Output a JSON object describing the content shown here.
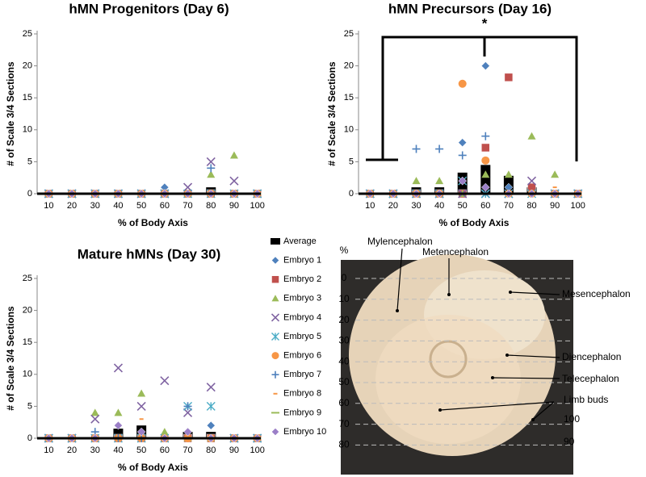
{
  "chart_data": [
    {
      "type": "scatter",
      "title": "hMN Progenitors (Day 6)",
      "y_label": "# of Scale 3/4 Sections",
      "x_label": "% of Body Axis",
      "categories": [
        "10",
        "20",
        "30",
        "40",
        "50",
        "60",
        "70",
        "80",
        "90",
        "100"
      ],
      "ylim": [
        0,
        25
      ],
      "yticks": [
        0,
        5,
        10,
        15,
        20,
        25
      ],
      "series": [
        {
          "name": "Average",
          "marker": "bar",
          "color": "#000000",
          "values": [
            0,
            0,
            0,
            0,
            0,
            0,
            0,
            1,
            0,
            0
          ]
        },
        {
          "name": "Embryo 1",
          "marker": "diamond",
          "color": "#4f81bd",
          "values": [
            0,
            0,
            0,
            0,
            0,
            1,
            0,
            0,
            0,
            0
          ]
        },
        {
          "name": "Embryo 2",
          "marker": "square",
          "color": "#c0504d",
          "values": [
            0,
            0,
            0,
            0,
            0,
            0,
            0,
            0,
            0,
            0
          ]
        },
        {
          "name": "Embryo 3",
          "marker": "triangle",
          "color": "#9bbb59",
          "values": [
            0,
            0,
            0,
            0,
            0,
            0,
            0,
            3,
            6,
            0
          ]
        },
        {
          "name": "Embryo 4",
          "marker": "x",
          "color": "#8064a2",
          "values": [
            0,
            0,
            0,
            0,
            0,
            0,
            1,
            5,
            2,
            0
          ]
        },
        {
          "name": "Embryo 5",
          "marker": "star",
          "color": "#4bacc6",
          "values": [
            0,
            0,
            0,
            0,
            0,
            0,
            0,
            0,
            0,
            0
          ]
        },
        {
          "name": "Embryo 6",
          "marker": "circle",
          "color": "#f79646",
          "values": [
            0,
            0,
            0,
            0,
            0,
            0,
            0,
            0,
            0,
            0
          ]
        },
        {
          "name": "Embryo 7",
          "marker": "plus",
          "color": "#4f81bd",
          "values": [
            0,
            0,
            0,
            0,
            0,
            0,
            0,
            4,
            0,
            0
          ]
        },
        {
          "name": "Embryo 8",
          "marker": "dot",
          "color": "#f79646",
          "values": [
            0,
            0,
            0,
            0,
            0,
            0,
            0,
            0,
            0,
            0
          ]
        },
        {
          "name": "Embryo 9",
          "marker": "dash",
          "color": "#9bbb59",
          "values": [
            0,
            0,
            0,
            0,
            0,
            0,
            0,
            0,
            0,
            0
          ]
        },
        {
          "name": "Embryo 10",
          "marker": "diamond",
          "color": "#9b7fc7",
          "values": [
            0,
            0,
            0,
            0,
            0,
            0,
            0,
            0,
            0,
            0
          ]
        }
      ]
    },
    {
      "type": "scatter",
      "title": "hMN Precursors (Day 16)",
      "y_label": "# of Scale 3/4 Sections",
      "x_label": "%  of Body Axis",
      "annotation": "*",
      "categories": [
        "10",
        "20",
        "30",
        "40",
        "50",
        "60",
        "70",
        "80",
        "90",
        "100"
      ],
      "ylim": [
        0,
        25
      ],
      "yticks": [
        0,
        5,
        10,
        15,
        20,
        25
      ],
      "series": [
        {
          "name": "Average",
          "marker": "bar",
          "color": "#000000",
          "values": [
            0,
            0,
            1,
            1,
            3.3,
            4.5,
            2.8,
            1,
            0,
            0
          ]
        },
        {
          "name": "Embryo 1",
          "marker": "diamond",
          "color": "#4f81bd",
          "values": [
            0,
            0,
            0,
            0,
            8,
            20,
            1,
            0,
            0,
            0
          ]
        },
        {
          "name": "Embryo 2",
          "marker": "square",
          "color": "#c0504d",
          "values": [
            0,
            0,
            0,
            0,
            0,
            7.2,
            18.2,
            1,
            0,
            0
          ]
        },
        {
          "name": "Embryo 3",
          "marker": "triangle",
          "color": "#9bbb59",
          "values": [
            0,
            0,
            2,
            2,
            0,
            3,
            3,
            9,
            3,
            0
          ]
        },
        {
          "name": "Embryo 4",
          "marker": "x",
          "color": "#8064a2",
          "values": [
            0,
            0,
            0,
            0,
            0,
            0,
            0,
            2,
            0,
            0
          ]
        },
        {
          "name": "Embryo 5",
          "marker": "star",
          "color": "#4bacc6",
          "values": [
            0,
            0,
            0,
            0,
            2,
            0,
            0,
            0,
            0,
            0
          ]
        },
        {
          "name": "Embryo 6",
          "marker": "circle",
          "color": "#f79646",
          "values": [
            0,
            0,
            0,
            0,
            17.2,
            5.2,
            0,
            0,
            0,
            0
          ]
        },
        {
          "name": "Embryo 7",
          "marker": "plus",
          "color": "#4f81bd",
          "values": [
            0,
            0,
            7,
            7,
            6,
            9,
            0,
            0,
            0,
            0
          ]
        },
        {
          "name": "Embryo 8",
          "marker": "dot",
          "color": "#f79646",
          "values": [
            0,
            0,
            0,
            0,
            0,
            0,
            0,
            0,
            1,
            0
          ]
        },
        {
          "name": "Embryo 9",
          "marker": "dash",
          "color": "#9bbb59",
          "values": [
            0,
            0,
            0,
            0,
            0,
            0,
            0,
            0,
            0,
            0
          ]
        },
        {
          "name": "Embryo 10",
          "marker": "diamond",
          "color": "#9b7fc7",
          "values": [
            0,
            0,
            0,
            0,
            2,
            1,
            0,
            0,
            0,
            0
          ]
        }
      ]
    },
    {
      "type": "scatter",
      "title": "Mature hMNs (Day 30)",
      "y_label": "# of Scale 3/4 Sections",
      "x_label": "% of Body Axis",
      "categories": [
        "10",
        "20",
        "30",
        "40",
        "50",
        "60",
        "70",
        "80",
        "90",
        "100"
      ],
      "ylim": [
        0,
        25
      ],
      "yticks": [
        0,
        5,
        10,
        15,
        20,
        25
      ],
      "series": [
        {
          "name": "Average",
          "marker": "bar",
          "color": "#000000",
          "values": [
            0,
            0,
            0,
            1.5,
            2,
            0,
            1,
            1,
            0,
            0
          ]
        },
        {
          "name": "Embryo 1",
          "marker": "diamond",
          "color": "#4f81bd",
          "values": [
            0,
            0,
            0,
            0,
            0,
            0,
            0,
            2,
            0,
            0
          ]
        },
        {
          "name": "Embryo 2",
          "marker": "square",
          "color": "#c0504d",
          "values": [
            0,
            0,
            0,
            0,
            0,
            0,
            0,
            0,
            0,
            0
          ]
        },
        {
          "name": "Embryo 3",
          "marker": "triangle",
          "color": "#9bbb59",
          "values": [
            0,
            0,
            4,
            4,
            7,
            1,
            0,
            0,
            0,
            0
          ]
        },
        {
          "name": "Embryo 4",
          "marker": "x",
          "color": "#8064a2",
          "values": [
            0,
            0,
            3,
            11,
            5,
            9,
            4,
            8,
            0,
            0
          ]
        },
        {
          "name": "Embryo 5",
          "marker": "star",
          "color": "#4bacc6",
          "values": [
            0,
            0,
            0,
            0,
            0,
            0,
            5,
            5,
            0,
            0
          ]
        },
        {
          "name": "Embryo 6",
          "marker": "circle",
          "color": "#f79646",
          "values": [
            0,
            0,
            0,
            0,
            0,
            0,
            0,
            0,
            0,
            0
          ]
        },
        {
          "name": "Embryo 7",
          "marker": "plus",
          "color": "#4f81bd",
          "values": [
            0,
            0,
            1,
            0,
            0,
            0,
            5,
            0,
            0,
            0
          ]
        },
        {
          "name": "Embryo 8",
          "marker": "dot",
          "color": "#f79646",
          "values": [
            0,
            0,
            0,
            0,
            3,
            0,
            0,
            0,
            0,
            0
          ]
        },
        {
          "name": "Embryo 9",
          "marker": "dash",
          "color": "#9bbb59",
          "values": [
            0,
            0,
            0,
            0,
            0,
            0,
            0,
            0,
            0,
            0
          ]
        },
        {
          "name": "Embryo 10",
          "marker": "diamond",
          "color": "#9b7fc7",
          "values": [
            0,
            0,
            0,
            2,
            1,
            0,
            1,
            0,
            0,
            0
          ]
        }
      ]
    }
  ],
  "image_panel": {
    "scale_label": "%",
    "scale": [
      "0",
      "10",
      "20",
      "30",
      "40",
      "50",
      "60",
      "70",
      "80"
    ],
    "labels": [
      "Mylencephalon",
      "Metencephalon",
      "Mesencephalon",
      "Diencephalon",
      "Telecephalon",
      "Limb buds"
    ],
    "side_numbers": [
      "100",
      "90"
    ]
  }
}
